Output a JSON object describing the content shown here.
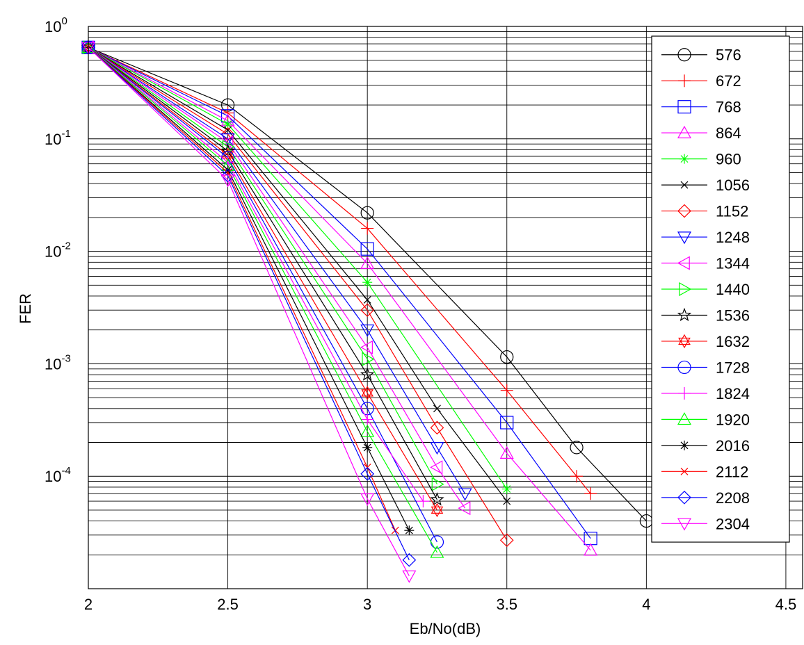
{
  "chart_data": {
    "type": "line",
    "xlabel": "Eb/No(dB)",
    "ylabel": "FER",
    "x_scale": "linear",
    "y_scale": "log",
    "xlim": [
      2,
      4.56
    ],
    "ylim": [
      1e-05,
      1
    ],
    "x_ticks": [
      "2",
      "2.5",
      "3",
      "3.5",
      "4",
      "4.5"
    ],
    "y_ticks": [
      {
        "base": "10",
        "exp": "0",
        "value": 1
      },
      {
        "base": "10",
        "exp": "-1",
        "value": 0.1
      },
      {
        "base": "10",
        "exp": "-2",
        "value": 0.01
      },
      {
        "base": "10",
        "exp": "-3",
        "value": 0.001
      },
      {
        "base": "10",
        "exp": "-4",
        "value": 0.0001
      }
    ],
    "grid": true,
    "legend_position": "right",
    "series": [
      {
        "name": "576",
        "color": "#000000",
        "marker": "circle",
        "x": [
          2,
          2.5,
          3,
          3.5,
          3.75,
          4
        ],
        "y": [
          0.65,
          0.2,
          0.022,
          0.00115,
          0.00018,
          4e-05
        ]
      },
      {
        "name": "672",
        "color": "#ff0000",
        "marker": "plus",
        "x": [
          2,
          2.5,
          3,
          3.5,
          3.75,
          3.8
        ],
        "y": [
          0.65,
          0.17,
          0.016,
          0.00058,
          0.0001,
          7e-05
        ]
      },
      {
        "name": "768",
        "color": "#0000ff",
        "marker": "square",
        "x": [
          2,
          2.5,
          3,
          3.5,
          3.8
        ],
        "y": [
          0.65,
          0.16,
          0.0105,
          0.0003,
          2.8e-05
        ]
      },
      {
        "name": "864",
        "color": "#ff00ff",
        "marker": "triangle-up",
        "x": [
          2,
          2.5,
          3,
          3.5,
          3.8
        ],
        "y": [
          0.65,
          0.145,
          0.0078,
          0.00016,
          2.2e-05
        ]
      },
      {
        "name": "960",
        "color": "#00ff00",
        "marker": "asterisk",
        "x": [
          2,
          2.5,
          3,
          3.5
        ],
        "y": [
          0.65,
          0.135,
          0.0053,
          7.7e-05
        ]
      },
      {
        "name": "1056",
        "color": "#000000",
        "marker": "x",
        "x": [
          2,
          2.5,
          3,
          3.25,
          3.5
        ],
        "y": [
          0.65,
          0.12,
          0.0037,
          0.0004,
          6e-05
        ]
      },
      {
        "name": "1152",
        "color": "#ff0000",
        "marker": "diamond",
        "x": [
          2,
          2.5,
          3,
          3.25,
          3.5
        ],
        "y": [
          0.65,
          0.11,
          0.003,
          0.00027,
          2.7e-05
        ]
      },
      {
        "name": "1248",
        "color": "#0000ff",
        "marker": "triangle-down",
        "x": [
          2,
          2.5,
          3,
          3.25,
          3.35
        ],
        "y": [
          0.65,
          0.1,
          0.002,
          0.00018,
          7e-05
        ]
      },
      {
        "name": "1344",
        "color": "#ff00ff",
        "marker": "triangle-left",
        "x": [
          2,
          2.5,
          3,
          3.25,
          3.35
        ],
        "y": [
          0.65,
          0.093,
          0.0014,
          0.00012,
          5.2e-05
        ]
      },
      {
        "name": "1440",
        "color": "#00ff00",
        "marker": "triangle-right",
        "x": [
          2,
          2.5,
          3,
          3.25
        ],
        "y": [
          0.65,
          0.085,
          0.0011,
          8.5e-05
        ]
      },
      {
        "name": "1536",
        "color": "#000000",
        "marker": "star",
        "x": [
          2,
          2.5,
          3,
          3.25
        ],
        "y": [
          0.65,
          0.078,
          0.0008,
          6.2e-05
        ]
      },
      {
        "name": "1632",
        "color": "#ff0000",
        "marker": "hexagram",
        "x": [
          2,
          2.5,
          3,
          3.25
        ],
        "y": [
          0.65,
          0.072,
          0.00055,
          5e-05
        ]
      },
      {
        "name": "1728",
        "color": "#0000ff",
        "marker": "circle",
        "x": [
          2,
          2.5,
          3,
          3.25
        ],
        "y": [
          0.65,
          0.068,
          0.0004,
          2.6e-05
        ]
      },
      {
        "name": "1824",
        "color": "#ff00ff",
        "marker": "plus",
        "x": [
          2,
          2.5,
          3,
          3.2
        ],
        "y": [
          0.65,
          0.062,
          0.00032,
          6e-05
        ]
      },
      {
        "name": "1920",
        "color": "#00ff00",
        "marker": "triangle-up",
        "x": [
          2,
          2.5,
          3,
          3.25
        ],
        "y": [
          0.65,
          0.058,
          0.00025,
          2.1e-05
        ]
      },
      {
        "name": "2016",
        "color": "#000000",
        "marker": "asterisk",
        "x": [
          2,
          2.5,
          3,
          3.15
        ],
        "y": [
          0.65,
          0.053,
          0.00018,
          3.3e-05
        ]
      },
      {
        "name": "2112",
        "color": "#ff0000",
        "marker": "x",
        "x": [
          2,
          2.5,
          3,
          3.1
        ],
        "y": [
          0.65,
          0.05,
          0.00012,
          3.3e-05
        ]
      },
      {
        "name": "2208",
        "color": "#0000ff",
        "marker": "diamond",
        "x": [
          2,
          2.5,
          3,
          3.15
        ],
        "y": [
          0.65,
          0.047,
          0.000105,
          1.8e-05
        ]
      },
      {
        "name": "2304",
        "color": "#ff00ff",
        "marker": "triangle-down",
        "x": [
          2,
          2.5,
          3,
          3.15
        ],
        "y": [
          0.65,
          0.043,
          6.3e-05,
          1.3e-05
        ]
      }
    ]
  }
}
